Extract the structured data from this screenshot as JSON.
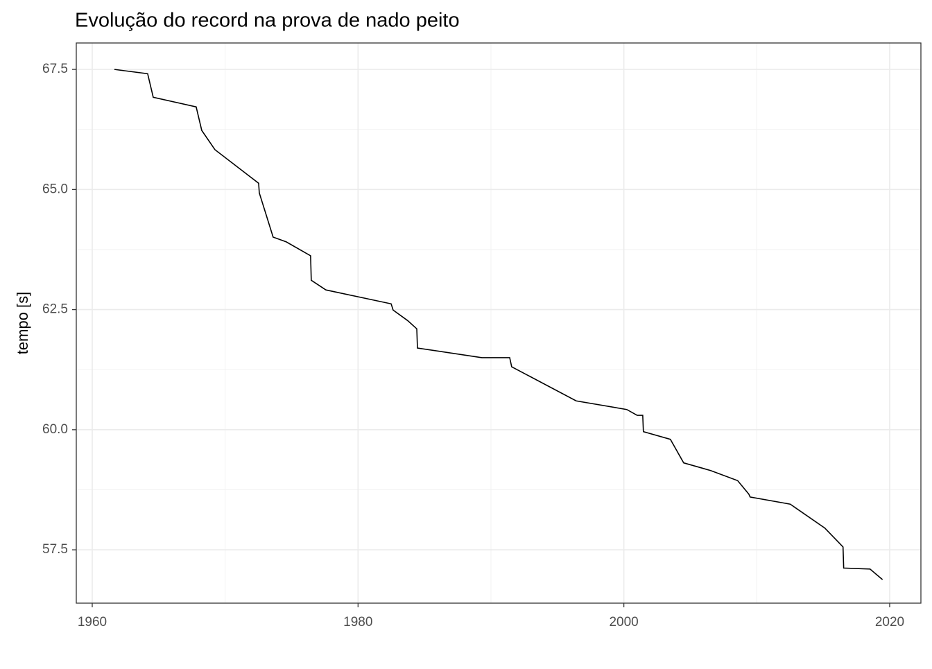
{
  "chart_data": {
    "type": "line",
    "title": "Evolução do record na prova de nado peito",
    "y_label": "tempo [s]",
    "color": "#000000",
    "grid": true,
    "xlim": [
      1958.8,
      2022.35
    ],
    "xticks": [
      1960,
      1980,
      2000,
      2020
    ],
    "ylim": [
      56.39,
      68.05
    ],
    "yticks": [
      57.5,
      {
        "value": 60,
        "label": "60.0"
      },
      62.5,
      {
        "value": 65,
        "label": "65.0"
      },
      67.5
    ],
    "x": [
      1961.67,
      1964.17,
      1964.59,
      1967.82,
      1968.24,
      1969.23,
      1972.52,
      1972.57,
      1973.61,
      1974.6,
      1976.43,
      1976.48,
      1977.58,
      1982.49,
      1982.64,
      1983.74,
      1984.42,
      1984.47,
      1989.32,
      1991.41,
      1991.56,
      1996.41,
      2000.22,
      2001.0,
      2001.42,
      2001.47,
      2003.5,
      2004.5,
      2006.53,
      2008.56,
      2009.4,
      2009.5,
      2012.52,
      2015.13,
      2016.49,
      2016.54,
      2018.52,
      2019.46
    ],
    "values": [
      67.5,
      67.41,
      66.92,
      66.72,
      66.23,
      65.83,
      65.13,
      64.93,
      64.01,
      63.91,
      63.62,
      63.11,
      62.91,
      62.62,
      62.49,
      62.27,
      62.1,
      61.7,
      61.5,
      61.5,
      61.31,
      60.6,
      60.42,
      60.3,
      60.3,
      59.96,
      59.8,
      59.31,
      59.15,
      58.94,
      58.66,
      58.6,
      58.45,
      57.95,
      57.56,
      57.12,
      57.1,
      56.88
    ]
  }
}
